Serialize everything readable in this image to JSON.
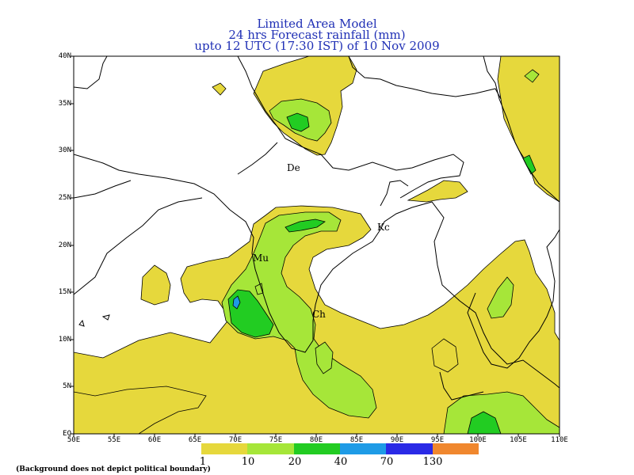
{
  "title": {
    "line1": "Limited Area Model",
    "line2": "24 hrs Forecast rainfall (mm)",
    "line3": "upto 12 UTC (17:30 IST) of 10 Nov 2009"
  },
  "axes": {
    "lat_labels": [
      "40N",
      "35N",
      "30N",
      "25N",
      "20N",
      "15N",
      "10N",
      "5N",
      "EQ"
    ],
    "lon_labels": [
      "50E",
      "55E",
      "60E",
      "65E",
      "70E",
      "75E",
      "80E",
      "85E",
      "90E",
      "95E",
      "100E",
      "105E",
      "110E"
    ]
  },
  "cities": {
    "delhi": "De",
    "kolkata": "Kc",
    "mumbai": "Mu",
    "chennai": "Ch"
  },
  "legend": {
    "colors": [
      "#e6d83c",
      "#a6e639",
      "#22cc22",
      "#1e9be6",
      "#2a2ae6",
      "#f0872e"
    ],
    "values": [
      "1",
      "10",
      "20",
      "40",
      "70",
      "130"
    ]
  },
  "note": "(Background does not depict political boundary)",
  "colors": {
    "title": "#1f2fb5",
    "rain_1_10": "#e6d83c",
    "rain_10_20": "#a6e639",
    "rain_20_40": "#22cc22",
    "rain_40_70": "#1e9be6"
  }
}
